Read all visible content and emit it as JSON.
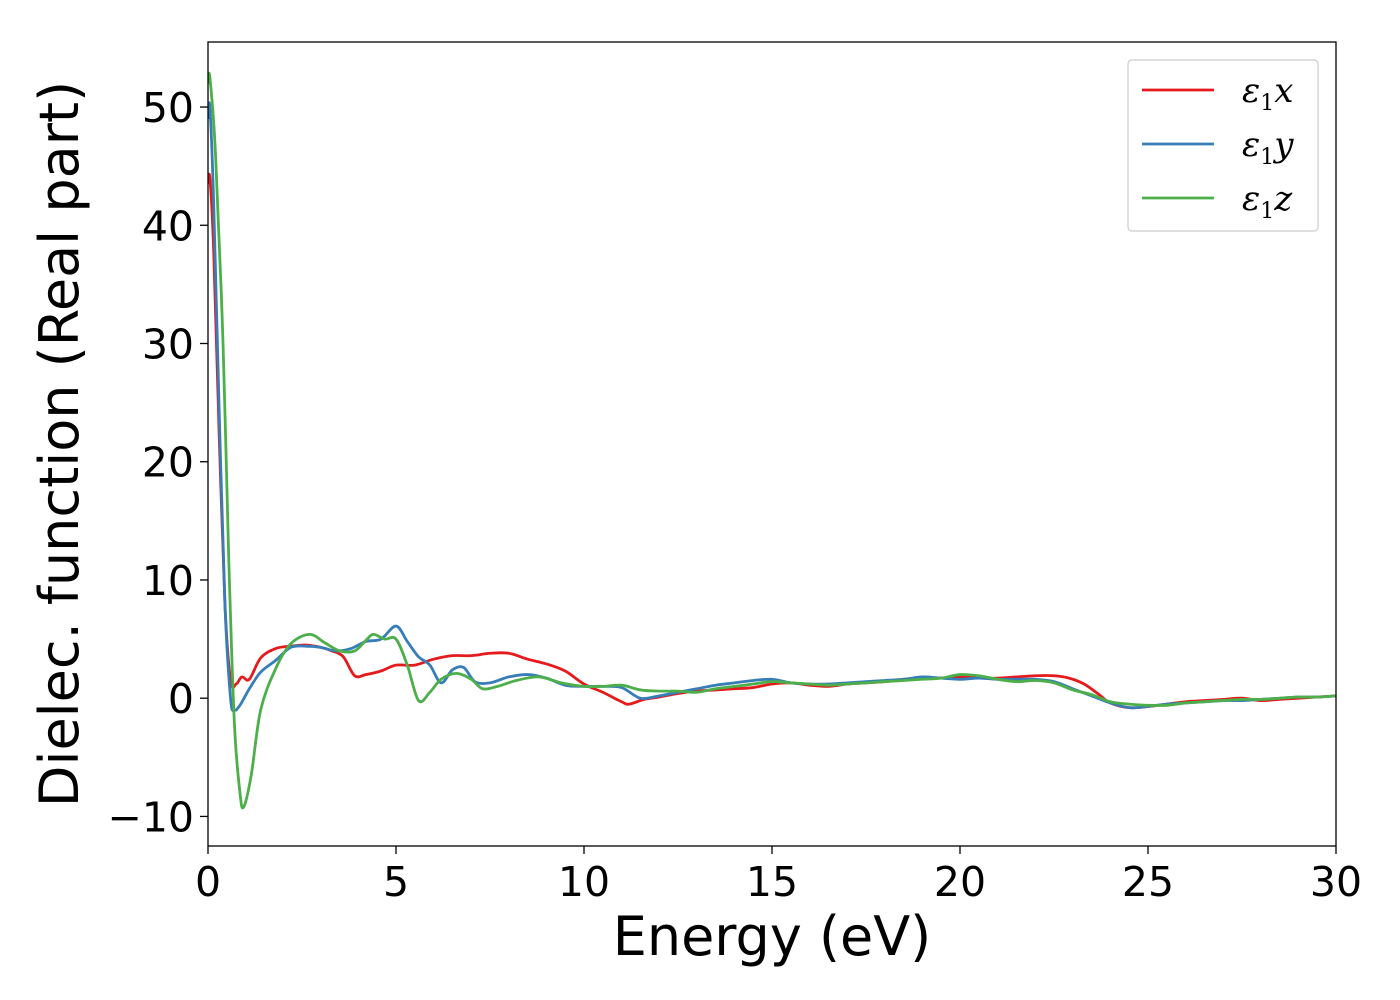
{
  "chart_data": {
    "type": "line",
    "xlabel": "Energy (eV)",
    "ylabel": "Dielec. function (Real part)",
    "xlim": [
      0,
      30
    ],
    "ylim": [
      -12.5,
      55.5
    ],
    "xticks": [
      0,
      5,
      10,
      15,
      20,
      25,
      30
    ],
    "yticks": [
      -10,
      0,
      10,
      20,
      30,
      40,
      50
    ],
    "ytick_labels": [
      "−10",
      "0",
      "10",
      "20",
      "30",
      "40",
      "50"
    ],
    "grid": false,
    "legend_position": "top-right",
    "series": [
      {
        "name": "ε1x",
        "base": "ε",
        "sub": "1",
        "suffix": "x",
        "color": "#e41a1c",
        "x": [
          0,
          0.05,
          0.15,
          0.3,
          0.45,
          0.6,
          0.75,
          0.9,
          1.1,
          1.4,
          1.8,
          2.2,
          2.6,
          3.0,
          3.3,
          3.6,
          3.9,
          4.2,
          4.6,
          5.0,
          5.5,
          6.0,
          6.5,
          7.0,
          7.5,
          8.0,
          8.5,
          9.0,
          9.5,
          10.0,
          10.5,
          11.0,
          11.2,
          11.6,
          12.0,
          12.5,
          13.0,
          13.5,
          14.0,
          14.5,
          15.0,
          15.5,
          16.0,
          16.5,
          17.0,
          17.5,
          18.0,
          18.5,
          19.0,
          19.5,
          20.0,
          20.5,
          21.0,
          21.5,
          22.0,
          22.5,
          22.9,
          23.3,
          23.7,
          24.0,
          24.5,
          25.0,
          25.5,
          26.0,
          26.5,
          27.0,
          27.5,
          28.0,
          28.5,
          29.0,
          29.5,
          30.0
        ],
        "y": [
          43.5,
          44.0,
          38.0,
          22.0,
          8.0,
          1.5,
          1.2,
          1.8,
          1.6,
          3.4,
          4.2,
          4.4,
          4.5,
          4.3,
          4.0,
          3.5,
          1.9,
          2.0,
          2.3,
          2.8,
          2.8,
          3.3,
          3.6,
          3.6,
          3.8,
          3.8,
          3.3,
          2.9,
          2.3,
          1.2,
          0.5,
          -0.3,
          -0.5,
          -0.1,
          0.1,
          0.4,
          0.6,
          0.7,
          0.8,
          0.9,
          1.2,
          1.3,
          1.1,
          1.0,
          1.2,
          1.3,
          1.4,
          1.6,
          1.7,
          1.7,
          1.8,
          1.7,
          1.7,
          1.8,
          1.9,
          1.9,
          1.7,
          1.2,
          0.3,
          -0.4,
          -0.8,
          -0.7,
          -0.5,
          -0.3,
          -0.2,
          -0.1,
          0.0,
          -0.2,
          -0.1,
          0.0,
          0.1,
          0.2
        ]
      },
      {
        "name": "ε1y",
        "base": "ε",
        "sub": "1",
        "suffix": "y",
        "color": "#377eb8",
        "x": [
          0,
          0.05,
          0.15,
          0.3,
          0.45,
          0.6,
          0.7,
          0.85,
          1.1,
          1.4,
          1.8,
          2.2,
          2.6,
          3.0,
          3.4,
          3.8,
          4.2,
          4.6,
          5.0,
          5.3,
          5.6,
          5.9,
          6.2,
          6.5,
          6.8,
          7.1,
          7.5,
          8.0,
          8.5,
          9.0,
          9.5,
          10.0,
          10.5,
          11.0,
          11.5,
          12.0,
          12.5,
          13.0,
          13.5,
          14.0,
          14.5,
          15.0,
          15.5,
          16.0,
          16.5,
          17.0,
          17.5,
          18.0,
          18.5,
          19.0,
          19.5,
          20.0,
          20.5,
          21.0,
          21.5,
          22.0,
          22.5,
          23.0,
          23.5,
          24.0,
          24.5,
          25.0,
          25.5,
          26.0,
          26.5,
          27.0,
          27.5,
          28.0,
          28.5,
          29.0,
          29.5,
          30.0
        ],
        "y": [
          49.0,
          50.0,
          42.0,
          24.0,
          8.0,
          0.0,
          -1.0,
          -0.6,
          0.8,
          2.2,
          3.2,
          4.3,
          4.4,
          4.3,
          4.0,
          4.2,
          4.8,
          5.0,
          6.1,
          4.8,
          3.5,
          2.8,
          1.3,
          2.4,
          2.6,
          1.4,
          1.3,
          1.8,
          2.0,
          1.7,
          1.1,
          1.0,
          1.0,
          0.9,
          0.0,
          0.2,
          0.5,
          0.8,
          1.1,
          1.3,
          1.5,
          1.6,
          1.3,
          1.2,
          1.2,
          1.3,
          1.4,
          1.5,
          1.6,
          1.8,
          1.7,
          1.6,
          1.7,
          1.6,
          1.6,
          1.6,
          1.4,
          0.8,
          0.2,
          -0.4,
          -0.8,
          -0.7,
          -0.5,
          -0.4,
          -0.3,
          -0.2,
          -0.2,
          -0.1,
          0.0,
          0.1,
          0.1,
          0.2
        ]
      },
      {
        "name": "ε1z",
        "base": "ε",
        "sub": "1",
        "suffix": "z",
        "color": "#4daf4a",
        "x": [
          0,
          0.05,
          0.2,
          0.4,
          0.55,
          0.7,
          0.85,
          0.95,
          1.15,
          1.4,
          1.8,
          2.2,
          2.7,
          3.1,
          3.5,
          3.9,
          4.2,
          4.4,
          4.7,
          5.0,
          5.3,
          5.6,
          5.9,
          6.2,
          6.6,
          7.0,
          7.3,
          7.7,
          8.2,
          8.8,
          9.4,
          10.0,
          10.5,
          11.0,
          11.5,
          12.0,
          12.5,
          13.0,
          13.5,
          14.0,
          14.5,
          15.0,
          15.5,
          16.0,
          16.5,
          17.0,
          17.5,
          18.0,
          18.5,
          19.0,
          19.5,
          20.0,
          20.5,
          21.0,
          21.5,
          22.0,
          22.5,
          23.0,
          23.5,
          24.0,
          24.5,
          25.0,
          25.5,
          26.0,
          26.5,
          27.0,
          27.5,
          28.0,
          28.5,
          29.0,
          29.5,
          30.0
        ],
        "y": [
          52.0,
          52.5,
          46.0,
          30.0,
          12.0,
          -2.0,
          -8.0,
          -9.2,
          -6.5,
          -1.0,
          2.5,
          4.6,
          5.4,
          4.7,
          4.0,
          4.0,
          4.9,
          5.4,
          5.0,
          5.0,
          2.8,
          -0.2,
          0.5,
          1.6,
          2.1,
          1.6,
          0.8,
          1.0,
          1.5,
          1.8,
          1.3,
          1.0,
          1.0,
          1.1,
          0.7,
          0.6,
          0.6,
          0.5,
          0.8,
          1.0,
          1.2,
          1.4,
          1.3,
          1.2,
          1.1,
          1.2,
          1.3,
          1.4,
          1.5,
          1.6,
          1.7,
          2.0,
          1.9,
          1.6,
          1.4,
          1.5,
          1.3,
          0.7,
          0.3,
          -0.3,
          -0.5,
          -0.6,
          -0.6,
          -0.4,
          -0.3,
          -0.2,
          -0.1,
          -0.1,
          0.0,
          0.1,
          0.1,
          0.2
        ]
      }
    ]
  }
}
